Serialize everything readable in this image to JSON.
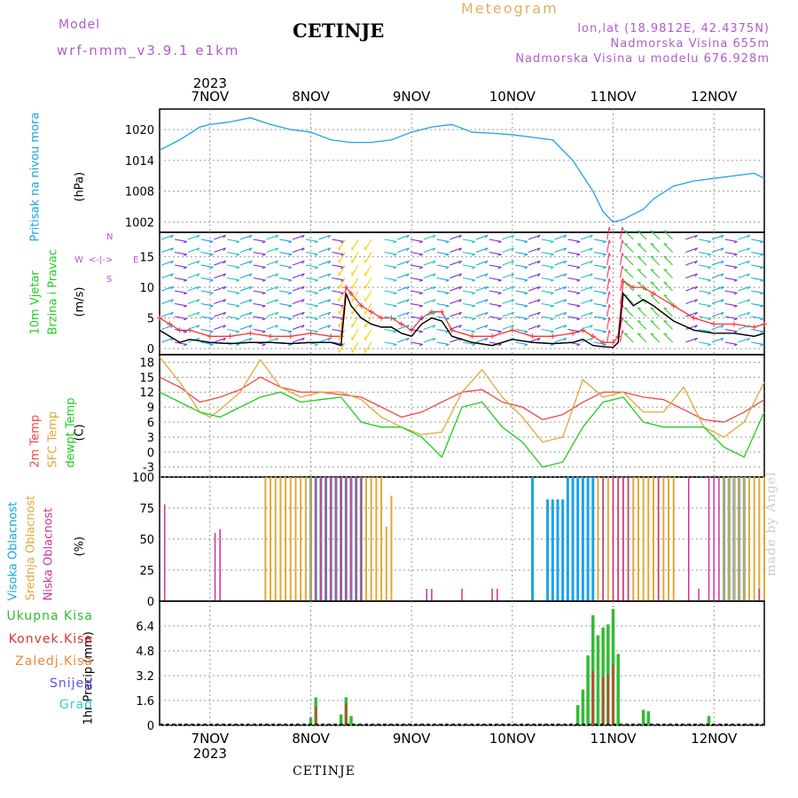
{
  "header": {
    "model_label": "Model",
    "model_name": "wrf-nmm_v3.9.1 e1km",
    "title": "CETINJE",
    "meteogram_label": "Meteogram",
    "lonlat": "lon,lat (18.9812E, 42.4375N)",
    "elevation": "Nadmorska Visina 655m",
    "model_elevation": "Nadmorska Visina u modelu 676.928m"
  },
  "footer": {
    "station": "CETINJE",
    "watermark": "made by Angel"
  },
  "time_axis": {
    "year": "2023",
    "days": [
      "7NOV",
      "8NOV",
      "9NOV",
      "10NOV",
      "11NOV",
      "12NOV"
    ]
  },
  "colors": {
    "pressure": "#1aa3e8",
    "temp2m": "#f04848",
    "sfc_temp": "#e0a838",
    "dewpt": "#22cc22",
    "high_cloud": "#1aa3e8",
    "mid_cloud": "#e0a838",
    "low_cloud": "#cc3399",
    "total_precip": "#33bb33",
    "conv_precip": "#dd3333",
    "frz_precip": "#ee8833",
    "snow": "#5555ee",
    "hail": "#33cccc",
    "wind_speed": "#000000",
    "wind_gust": "#ff3333"
  },
  "panels": {
    "pressure": {
      "label": "Pritisak na nivou mora",
      "unit": "(hPa)"
    },
    "wind": {
      "label1": "10m Vjetar",
      "label2": "Brzina i Pravac",
      "unit": "(m/s)",
      "compass_n": "N",
      "compass_s": "S",
      "compass_w": "W",
      "compass_e": "E"
    },
    "temp": {
      "label1": "2m Temp",
      "label2": "SFC Temp",
      "label3": "dewpt Temp",
      "unit": "(C)"
    },
    "cloud": {
      "label1": "Visoka Oblacnost",
      "label2": "Srednja Oblacnost",
      "label3": "Niska Oblacnost",
      "unit": "(%)"
    },
    "precip": {
      "unit": "1hr Precip (mm)",
      "legend": [
        "Ukupna Kisa",
        "Konvek.Kisa",
        "Zaledj.Kisa",
        "Snijeg",
        "Grad"
      ]
    }
  },
  "chart_data": [
    {
      "type": "line",
      "title": "Pritisak na nivou mora",
      "ylabel": "(hPa)",
      "ylim": [
        1000,
        1024
      ],
      "yticks": [
        1002,
        1008,
        1014,
        1020
      ],
      "xlim": [
        -0.5,
        5.5
      ],
      "x": [
        -0.5,
        -0.3,
        -0.1,
        0.0,
        0.2,
        0.4,
        0.6,
        0.8,
        1.0,
        1.2,
        1.4,
        1.6,
        1.8,
        2.0,
        2.2,
        2.4,
        2.6,
        2.8,
        3.0,
        3.2,
        3.4,
        3.6,
        3.8,
        3.9,
        4.0,
        4.1,
        4.2,
        4.3,
        4.4,
        4.6,
        4.8,
        5.0,
        5.2,
        5.4,
        5.5
      ],
      "series": [
        {
          "values": [
            1016,
            1018,
            1020.5,
            1021,
            1021.5,
            1022.3,
            1021,
            1020,
            1019.5,
            1018,
            1017.5,
            1017.5,
            1018,
            1019.5,
            1020.5,
            1021,
            1019.5,
            1019.3,
            1019,
            1018.5,
            1018,
            1014,
            1008,
            1004,
            1002,
            1002.5,
            1003.5,
            1004.5,
            1006.5,
            1009,
            1010,
            1010.5,
            1011,
            1011.5,
            1010.5
          ]
        }
      ]
    },
    {
      "type": "line",
      "title": "10m Vjetar Brzina i Pravac",
      "ylabel": "(m/s)",
      "ylim": [
        -1,
        19
      ],
      "yticks": [
        0,
        5,
        10,
        15
      ],
      "xlim": [
        -0.5,
        5.5
      ],
      "x": [
        -0.5,
        -0.4,
        -0.3,
        -0.2,
        0.0,
        0.2,
        0.4,
        0.6,
        0.8,
        1.0,
        1.2,
        1.3,
        1.35,
        1.4,
        1.5,
        1.6,
        1.7,
        1.8,
        1.9,
        2.0,
        2.1,
        2.2,
        2.3,
        2.4,
        2.6,
        2.8,
        3.0,
        3.2,
        3.4,
        3.6,
        3.7,
        3.8,
        3.9,
        4.0,
        4.05,
        4.1,
        4.2,
        4.3,
        4.4,
        4.6,
        4.8,
        5.0,
        5.2,
        5.4,
        5.5
      ],
      "series": [
        {
          "name": "speed",
          "values": [
            3,
            2,
            1,
            1.5,
            1,
            0.8,
            1,
            1,
            0.8,
            1,
            1,
            0.5,
            9,
            7,
            5,
            4,
            3.5,
            3.5,
            2.5,
            2,
            4,
            5,
            4.5,
            2,
            1,
            0.5,
            1.5,
            1,
            0.8,
            1,
            1.5,
            0.5,
            0.3,
            0.2,
            1,
            9,
            7,
            8,
            7,
            4.5,
            3,
            2.5,
            2.5,
            2,
            2.5
          ]
        },
        {
          "name": "gust",
          "values": [
            5,
            4,
            3,
            3,
            2,
            2,
            2.5,
            2,
            2,
            2.5,
            2,
            2,
            10,
            9,
            7,
            6,
            5,
            5,
            4,
            3,
            5,
            6,
            6,
            3,
            2,
            2,
            3,
            2,
            2,
            2.5,
            3,
            2,
            1,
            1,
            2,
            11,
            10,
            10,
            9,
            7,
            5,
            4,
            4,
            3.5,
            4
          ]
        }
      ]
    },
    {
      "type": "line",
      "title": "Temp",
      "ylabel": "(C)",
      "ylim": [
        -5,
        19.5
      ],
      "yticks": [
        -3,
        0,
        3,
        6,
        9,
        12,
        15,
        18
      ],
      "xlim": [
        -0.5,
        5.5
      ],
      "x": [
        -0.5,
        -0.3,
        -0.1,
        0.0,
        0.1,
        0.3,
        0.5,
        0.7,
        0.9,
        1.1,
        1.3,
        1.5,
        1.7,
        1.9,
        2.1,
        2.3,
        2.5,
        2.7,
        2.9,
        3.1,
        3.3,
        3.5,
        3.7,
        3.9,
        4.1,
        4.3,
        4.5,
        4.7,
        4.9,
        5.1,
        5.3,
        5.5
      ],
      "series": [
        {
          "name": "2m Temp",
          "values": [
            15,
            13,
            10,
            10.5,
            11,
            12.5,
            15,
            13,
            12,
            12,
            11.5,
            11,
            9,
            7,
            8,
            10,
            12,
            12.5,
            10,
            9,
            6.5,
            7.5,
            10,
            12,
            12,
            11,
            10.5,
            8.5,
            6.5,
            6,
            8,
            10.5
          ]
        },
        {
          "name": "SFC Temp",
          "values": [
            19,
            14,
            8,
            7,
            8.5,
            12,
            18.5,
            13,
            11,
            12,
            12,
            10.5,
            7,
            5,
            3.5,
            4,
            12,
            16.5,
            11,
            7,
            2,
            3,
            14.5,
            11,
            12,
            8,
            8,
            13,
            5,
            3,
            6,
            14
          ]
        },
        {
          "name": "dewpt Temp",
          "values": [
            12,
            10,
            8,
            7.5,
            7,
            9,
            11,
            12,
            10,
            10.5,
            11,
            6,
            5,
            5,
            3,
            -1,
            9,
            10,
            5,
            2,
            -3,
            -2,
            5,
            10,
            11,
            6,
            5,
            5,
            5,
            1,
            -1,
            8
          ]
        }
      ]
    },
    {
      "type": "bar",
      "title": "Oblacnost",
      "ylabel": "(%)",
      "ylim": [
        0,
        100
      ],
      "yticks": [
        0,
        25,
        50,
        75,
        100
      ],
      "xlim": [
        -0.5,
        5.5
      ],
      "series": [
        {
          "name": "Visoka Oblacnost",
          "x": [
            1.0,
            1.05,
            1.1,
            1.15,
            1.2,
            1.25,
            1.3,
            1.35,
            1.4,
            1.45,
            1.5,
            3.2,
            3.35,
            3.4,
            3.45,
            3.5,
            3.55,
            3.6,
            3.65,
            3.7,
            3.75,
            3.8,
            5.1,
            5.15,
            5.2,
            5.25,
            5.3
          ],
          "values": [
            100,
            100,
            100,
            100,
            100,
            100,
            100,
            100,
            100,
            100,
            100,
            100,
            82,
            82,
            82,
            82,
            100,
            100,
            100,
            100,
            100,
            100,
            100,
            100,
            100,
            100,
            100
          ]
        },
        {
          "name": "Srednja Oblacnost",
          "x": [
            0.55,
            0.6,
            0.65,
            0.7,
            0.75,
            0.8,
            0.85,
            0.9,
            0.95,
            1.0,
            1.05,
            1.1,
            1.15,
            1.2,
            1.25,
            1.3,
            1.35,
            1.4,
            1.45,
            1.5,
            1.55,
            1.6,
            1.65,
            1.7,
            1.75,
            1.8,
            3.85,
            3.9,
            3.95,
            4.0,
            4.05,
            4.1,
            4.15,
            4.2,
            4.25,
            4.3,
            4.35,
            4.4,
            4.45,
            4.5,
            4.55,
            4.6,
            5.1,
            5.15,
            5.2,
            5.25,
            5.3,
            5.35,
            5.4,
            5.45,
            5.5
          ],
          "values": [
            100,
            100,
            100,
            100,
            100,
            100,
            100,
            100,
            100,
            100,
            100,
            100,
            100,
            100,
            100,
            100,
            100,
            100,
            100,
            100,
            100,
            100,
            100,
            100,
            60,
            85,
            100,
            100,
            100,
            100,
            100,
            100,
            100,
            100,
            100,
            100,
            100,
            100,
            100,
            100,
            100,
            100,
            100,
            100,
            100,
            100,
            100,
            100,
            100,
            100,
            100
          ]
        },
        {
          "name": "Niska Oblacnost",
          "x": [
            -0.45,
            0.05,
            0.1,
            1.05,
            1.1,
            1.15,
            1.2,
            1.25,
            1.3,
            1.35,
            1.4,
            1.45,
            1.5,
            2.15,
            2.2,
            2.5,
            2.8,
            2.85,
            3.9,
            4.0,
            4.05,
            4.1,
            4.15,
            4.45,
            4.75,
            4.85,
            4.95,
            5.0,
            5.05,
            5.45
          ],
          "values": [
            78,
            55,
            58,
            100,
            100,
            100,
            100,
            100,
            100,
            100,
            100,
            100,
            100,
            10,
            10,
            10,
            10,
            10,
            100,
            100,
            100,
            100,
            100,
            100,
            100,
            10,
            100,
            100,
            100,
            10
          ]
        }
      ]
    },
    {
      "type": "bar",
      "title": "1hr Precip",
      "ylabel": "1hr Precip (mm)",
      "ylim": [
        0,
        8
      ],
      "yticks": [
        0,
        1.6,
        3.2,
        4.8,
        6.4
      ],
      "xlim": [
        -0.5,
        5.5
      ],
      "series": [
        {
          "name": "Ukupna Kisa",
          "x": [
            1.0,
            1.05,
            1.3,
            1.35,
            1.4,
            3.65,
            3.7,
            3.75,
            3.8,
            3.85,
            3.9,
            3.95,
            4.0,
            4.05,
            4.3,
            4.35,
            4.95
          ],
          "values": [
            0.5,
            1.8,
            0.7,
            1.8,
            0.6,
            1.3,
            2.3,
            4.5,
            7.1,
            5.8,
            6.3,
            6.5,
            7.5,
            4.6,
            1.0,
            0.9,
            0.6
          ]
        },
        {
          "name": "Konvek.Kisa",
          "x": [
            1.05,
            1.35,
            3.8,
            3.9,
            3.95,
            4.0
          ],
          "values": [
            1.2,
            1.4,
            3.5,
            3.1,
            3.3,
            3.9
          ]
        }
      ]
    }
  ]
}
